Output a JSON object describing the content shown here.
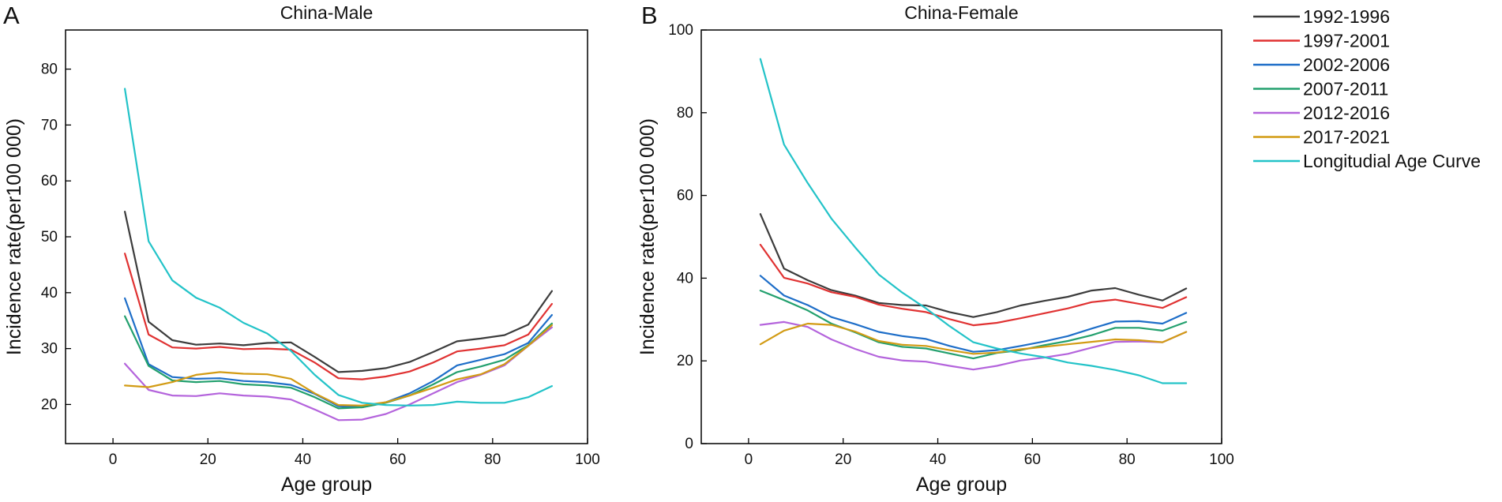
{
  "chart_data": [
    {
      "type": "line",
      "panel": "A",
      "title": "China-Male",
      "xlabel": "Age group",
      "ylabel": "Incidence rate(per100 000)",
      "xlim": [
        -10,
        100
      ],
      "ylim": [
        13,
        87
      ],
      "xticks": [
        0,
        20,
        40,
        60,
        80,
        100
      ],
      "yticks": [
        20,
        30,
        40,
        50,
        60,
        70,
        80
      ],
      "x": [
        2.5,
        7.5,
        12.5,
        17.5,
        22.5,
        27.5,
        32.5,
        37.5,
        42.5,
        47.5,
        52.5,
        57.5,
        62.5,
        67.5,
        72.5,
        77.5,
        82.5,
        87.5,
        92.5
      ],
      "series": [
        {
          "name": "1992-1996",
          "color": "#3c3c3c",
          "values": [
            54.5,
            34.8,
            31.5,
            30.7,
            30.9,
            30.6,
            31.0,
            31.1,
            28.5,
            25.8,
            26.0,
            26.5,
            27.6,
            29.4,
            31.3,
            31.8,
            32.4,
            34.3,
            40.3
          ]
        },
        {
          "name": "1997-2001",
          "color": "#e03232",
          "values": [
            47.0,
            32.5,
            30.2,
            30.0,
            30.3,
            29.9,
            30.0,
            29.8,
            27.5,
            24.7,
            24.5,
            25.0,
            25.9,
            27.5,
            29.5,
            30.0,
            30.6,
            32.5,
            38.0
          ]
        },
        {
          "name": "2002-2006",
          "color": "#1e6ec8",
          "values": [
            39.0,
            27.2,
            24.9,
            24.6,
            24.7,
            24.2,
            24.0,
            23.5,
            21.9,
            19.7,
            19.5,
            20.4,
            22.0,
            24.2,
            27.0,
            28.0,
            29.0,
            31.0,
            36.0
          ]
        },
        {
          "name": "2007-2011",
          "color": "#23a06e",
          "values": [
            35.8,
            26.9,
            24.3,
            24.0,
            24.2,
            23.6,
            23.4,
            23.0,
            21.3,
            19.3,
            19.5,
            20.3,
            21.6,
            23.6,
            25.8,
            26.8,
            28.0,
            30.6,
            34.5
          ]
        },
        {
          "name": "2012-2016",
          "color": "#b464dc",
          "values": [
            27.3,
            22.6,
            21.6,
            21.5,
            22.0,
            21.6,
            21.4,
            20.9,
            19.1,
            17.2,
            17.3,
            18.3,
            20.0,
            22.0,
            24.0,
            25.3,
            27.0,
            30.5,
            33.8
          ]
        },
        {
          "name": "2017-2021",
          "color": "#d29b14",
          "values": [
            23.4,
            23.1,
            24.0,
            25.3,
            25.8,
            25.5,
            25.4,
            24.6,
            22.0,
            19.9,
            19.8,
            20.4,
            21.6,
            23.0,
            24.5,
            25.4,
            27.2,
            30.5,
            34.2
          ]
        },
        {
          "name": "Longitudial Age Curve",
          "color": "#23c3c8",
          "values": [
            76.5,
            49.2,
            42.2,
            39.1,
            37.3,
            34.6,
            32.7,
            29.6,
            25.3,
            21.7,
            20.3,
            19.9,
            19.8,
            19.9,
            20.5,
            20.3,
            20.3,
            21.3,
            23.3
          ]
        }
      ]
    },
    {
      "type": "line",
      "panel": "B",
      "title": "China-Female",
      "xlabel": "Age group",
      "ylabel": "Incidence rate(per100 000)",
      "xlim": [
        -10,
        100
      ],
      "ylim": [
        0,
        100
      ],
      "xticks": [
        0,
        20,
        40,
        60,
        80,
        100
      ],
      "yticks": [
        0,
        20,
        40,
        60,
        80,
        100
      ],
      "x": [
        2.5,
        7.5,
        12.5,
        17.5,
        22.5,
        27.5,
        32.5,
        37.5,
        42.5,
        47.5,
        52.5,
        57.5,
        62.5,
        67.5,
        72.5,
        77.5,
        82.5,
        87.5,
        92.5
      ],
      "series": [
        {
          "name": "1992-1996",
          "color": "#3c3c3c",
          "values": [
            55.5,
            42.3,
            39.5,
            37.1,
            35.8,
            34.0,
            33.5,
            33.4,
            31.8,
            30.6,
            31.8,
            33.4,
            34.5,
            35.5,
            37.0,
            37.6,
            36.0,
            34.6,
            37.5
          ]
        },
        {
          "name": "1997-2001",
          "color": "#e03232",
          "values": [
            48.1,
            40.1,
            38.7,
            36.6,
            35.5,
            33.6,
            32.6,
            31.8,
            30.1,
            28.6,
            29.2,
            30.3,
            31.5,
            32.7,
            34.2,
            34.8,
            33.8,
            32.8,
            35.4
          ]
        },
        {
          "name": "2002-2006",
          "color": "#1e6ec8",
          "values": [
            40.6,
            35.8,
            33.5,
            30.6,
            28.9,
            27.0,
            26.0,
            25.3,
            23.6,
            22.2,
            22.6,
            23.6,
            24.7,
            26.0,
            27.8,
            29.5,
            29.6,
            29.0,
            31.6
          ]
        },
        {
          "name": "2007-2011",
          "color": "#23a06e",
          "values": [
            37.0,
            34.7,
            32.2,
            29.0,
            26.9,
            24.5,
            23.4,
            23.0,
            21.8,
            20.6,
            21.9,
            22.6,
            23.8,
            24.8,
            26.2,
            28.0,
            28.0,
            27.3,
            29.4
          ]
        },
        {
          "name": "2012-2016",
          "color": "#b464dc",
          "values": [
            28.7,
            29.4,
            28.2,
            25.2,
            22.9,
            21.0,
            20.1,
            19.8,
            18.8,
            17.9,
            18.8,
            20.1,
            20.8,
            21.7,
            23.2,
            24.6,
            24.7,
            24.5,
            27.0
          ]
        },
        {
          "name": "2017-2021",
          "color": "#d29b14",
          "values": [
            24.0,
            27.3,
            29.0,
            28.7,
            27.1,
            24.8,
            23.9,
            23.6,
            22.6,
            21.7,
            22.0,
            22.8,
            23.4,
            24.0,
            24.6,
            25.2,
            25.0,
            24.5,
            27.0
          ]
        },
        {
          "name": "Longitudial Age Curve",
          "color": "#23c3c8",
          "values": [
            93.0,
            72.3,
            63.0,
            54.4,
            47.5,
            40.9,
            36.5,
            32.7,
            28.4,
            24.5,
            23.0,
            21.8,
            20.9,
            19.6,
            18.8,
            17.8,
            16.5,
            14.6,
            14.6
          ]
        }
      ]
    }
  ],
  "legend": {
    "entries": [
      {
        "label": "1992-1996",
        "color": "#3c3c3c"
      },
      {
        "label": "1997-2001",
        "color": "#e03232"
      },
      {
        "label": "2002-2006",
        "color": "#1e6ec8"
      },
      {
        "label": "2007-2011",
        "color": "#23a06e"
      },
      {
        "label": "2012-2016",
        "color": "#b464dc"
      },
      {
        "label": "2017-2021",
        "color": "#d29b14"
      },
      {
        "label": "Longitudial Age Curve",
        "color": "#23c3c8"
      }
    ]
  }
}
